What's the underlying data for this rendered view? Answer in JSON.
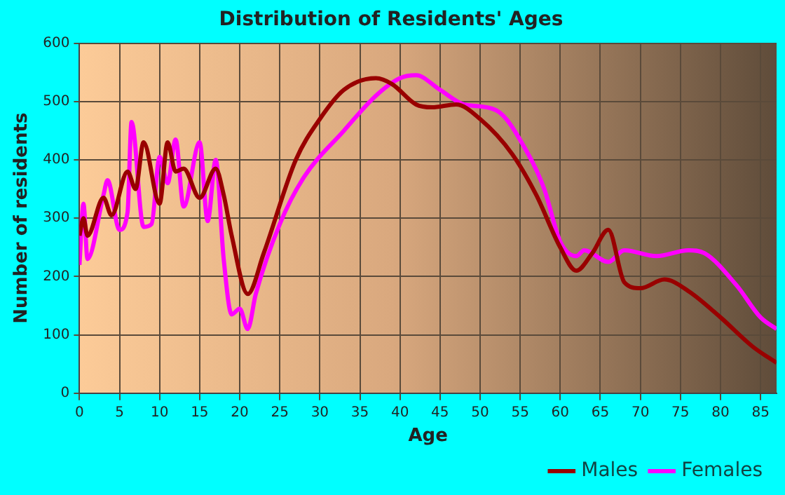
{
  "chart_data": {
    "type": "line",
    "title": "Distribution of Residents' Ages",
    "xlabel": "Age",
    "ylabel": "Number of residents",
    "xlim": [
      0,
      87
    ],
    "xticks": [
      0,
      5,
      10,
      15,
      20,
      25,
      30,
      35,
      40,
      45,
      50,
      55,
      60,
      65,
      70,
      75,
      80,
      85
    ],
    "ylim": [
      0,
      600
    ],
    "yticks": [
      0,
      100,
      200,
      300,
      400,
      500,
      600
    ],
    "grid": true,
    "legend": "bottom",
    "marker": "none",
    "line_style": "solid",
    "series": [
      {
        "name": "Males",
        "color": "#990000",
        "x": [
          0,
          0.5,
          1,
          3,
          4,
          6,
          7,
          8,
          10,
          11,
          12,
          13,
          15,
          17,
          18,
          19,
          21,
          23,
          27,
          30,
          33,
          37,
          39,
          42,
          44,
          47,
          50,
          54,
          57,
          60,
          62,
          64,
          66,
          68,
          70,
          73,
          76,
          80,
          84,
          87
        ],
        "values": [
          270,
          300,
          270,
          335,
          305,
          380,
          350,
          430,
          325,
          430,
          380,
          385,
          335,
          385,
          340,
          270,
          170,
          240,
          400,
          470,
          520,
          540,
          530,
          495,
          490,
          495,
          470,
          410,
          340,
          250,
          210,
          240,
          280,
          190,
          180,
          195,
          175,
          130,
          80,
          52
        ]
      },
      {
        "name": "Females",
        "color": "#ff00ff",
        "x": [
          0,
          0.5,
          1,
          3,
          3.5,
          5,
          6,
          6.5,
          8,
          9,
          10,
          11,
          12,
          13,
          15,
          16,
          17,
          18,
          19,
          20,
          21,
          22,
          25,
          28,
          33,
          37,
          40,
          42,
          45,
          48,
          52,
          56,
          58,
          60,
          62,
          63,
          66,
          68,
          72,
          76,
          78,
          82,
          85,
          87
        ],
        "values": [
          220,
          325,
          230,
          340,
          365,
          280,
          310,
          465,
          285,
          290,
          405,
          360,
          435,
          320,
          430,
          295,
          400,
          230,
          135,
          145,
          110,
          170,
          290,
          370,
          450,
          510,
          540,
          545,
          520,
          495,
          485,
          410,
          350,
          260,
          235,
          245,
          225,
          245,
          235,
          245,
          240,
          185,
          130,
          110
        ]
      }
    ]
  }
}
